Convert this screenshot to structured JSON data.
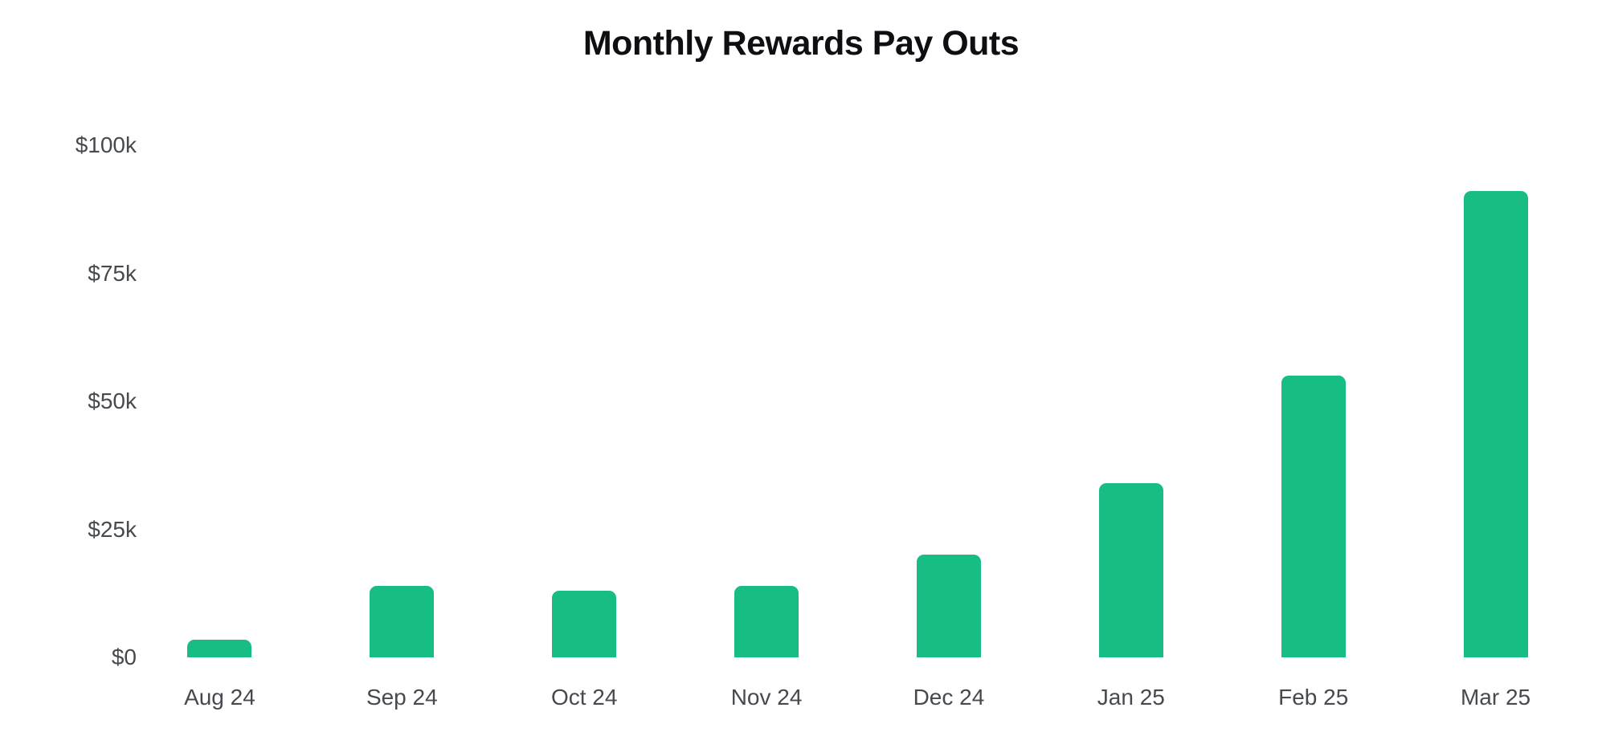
{
  "chart_data": {
    "type": "bar",
    "title": "Monthly Rewards Pay Outs",
    "categories": [
      "Aug 24",
      "Sep 24",
      "Oct 24",
      "Nov 24",
      "Dec 24",
      "Jan 25",
      "Feb 25",
      "Mar 25"
    ],
    "values": [
      3500,
      14000,
      13000,
      14000,
      20000,
      34000,
      55000,
      91000
    ],
    "xlabel": "",
    "ylabel": "",
    "ylim": [
      0,
      100000
    ],
    "yticks": [
      {
        "value": 0,
        "label": "$0"
      },
      {
        "value": 25000,
        "label": "$25k"
      },
      {
        "value": 50000,
        "label": "$50k"
      },
      {
        "value": 75000,
        "label": "$75k"
      },
      {
        "value": 100000,
        "label": "$100k"
      }
    ],
    "bar_color": "#17bd83",
    "grid": false,
    "legend": false,
    "background_color": "#ffffff",
    "title_color": "#0d0f12",
    "tick_label_color": "#46494e"
  }
}
